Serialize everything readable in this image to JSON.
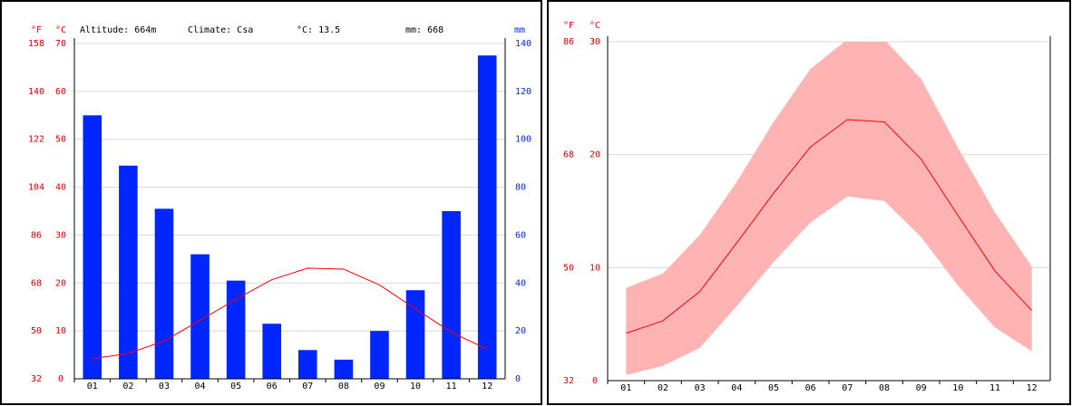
{
  "chart_data": [
    {
      "type": "climate",
      "header": [
        "Altitude: 664m",
        "Climate: Csa",
        "°C: 13.5",
        "mm: 668"
      ],
      "y_unit": "°C",
      "y_unit_alt": "°F",
      "y2_unit": "mm",
      "categories": [
        "01",
        "02",
        "03",
        "04",
        "05",
        "06",
        "07",
        "08",
        "09",
        "10",
        "11",
        "12"
      ],
      "series": [
        {
          "color": "#0026ff",
          "axis": "y2",
          "values": [
            110,
            89,
            71,
            52,
            41,
            23,
            12,
            8,
            20,
            37,
            70,
            135
          ]
        },
        {
          "color": "#ff0000",
          "values": [
            4.2,
            5.3,
            7.9,
            12.2,
            16.6,
            20.7,
            23.1,
            22.9,
            19.6,
            14.6,
            9.7,
            6.2
          ]
        }
      ],
      "ylim": [
        0,
        70
      ],
      "yticks": [
        0,
        10,
        20,
        30,
        40,
        50,
        60,
        70
      ],
      "yticks_alt": [
        {
          "value": 0,
          "label": "32"
        },
        {
          "value": 10,
          "label": "50"
        },
        {
          "value": 20,
          "label": "68"
        },
        {
          "value": 30,
          "label": "86"
        },
        {
          "value": 40,
          "label": "104"
        },
        {
          "value": 50,
          "label": "122"
        },
        {
          "value": 60,
          "label": "140"
        },
        {
          "value": 70,
          "label": "158"
        }
      ],
      "y2lim": [
        0,
        140
      ],
      "y2ticks": [
        0,
        20,
        40,
        60,
        80,
        100,
        120,
        140
      ],
      "grid": true
    },
    {
      "type": "range",
      "y_unit": "°C",
      "y_unit_alt": "°F",
      "categories": [
        "01",
        "02",
        "03",
        "04",
        "05",
        "06",
        "07",
        "08",
        "09",
        "10",
        "11",
        "12"
      ],
      "series": [
        {
          "color": "#ff0000",
          "values": [
            4.2,
            5.3,
            7.9,
            12.2,
            16.6,
            20.7,
            23.1,
            22.9,
            19.6,
            14.6,
            9.7,
            6.2
          ]
        }
      ],
      "band": {
        "color": "#ffb3b3",
        "lower": [
          0.5,
          1.3,
          2.9,
          6.6,
          10.5,
          14.0,
          16.3,
          15.9,
          12.7,
          8.4,
          4.7,
          2.6
        ],
        "upper": [
          8.2,
          9.5,
          12.9,
          17.6,
          22.9,
          27.6,
          30.2,
          30.2,
          26.7,
          20.6,
          14.9,
          10.1
        ]
      },
      "ylim": [
        0,
        30
      ],
      "yticks": [
        0,
        10,
        20,
        30
      ],
      "yticks_alt": [
        {
          "value": 0,
          "label": "32"
        },
        {
          "value": 10,
          "label": "50"
        },
        {
          "value": 20,
          "label": "68"
        },
        {
          "value": 30,
          "label": "86"
        }
      ],
      "grid": true
    }
  ]
}
